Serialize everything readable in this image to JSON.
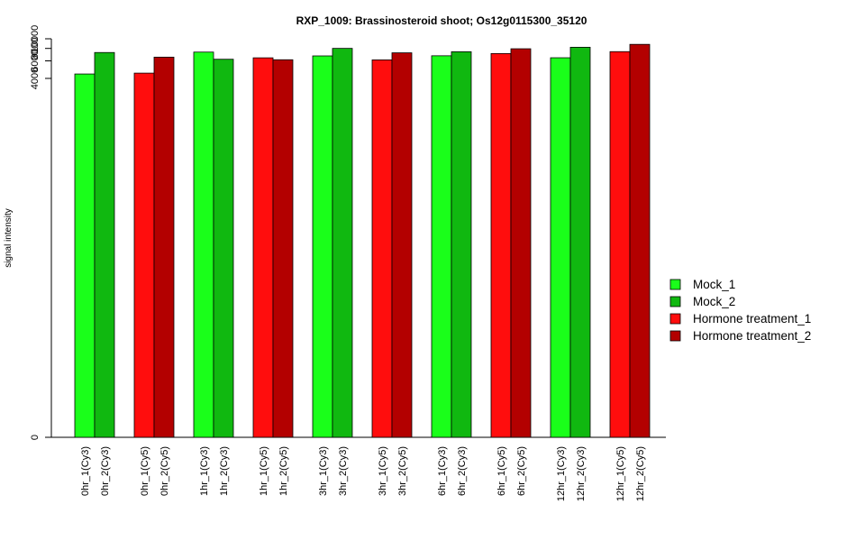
{
  "chart_data": {
    "type": "bar",
    "title": "RXP_1009: Brassinosteroid shoot; Os12g0115300_35120",
    "ylabel": "signal intensity",
    "xlabel": "",
    "ylim": [
      0,
      10000
    ],
    "y_scale": "log",
    "yticks": [
      0,
      4000,
      6000,
      8000,
      10000
    ],
    "ytick_labels": [
      "0",
      "4000",
      "6000",
      "8000",
      "10000"
    ],
    "grid": false,
    "legend_position": "right",
    "legend": [
      {
        "name": "Mock_1",
        "color": "#1aff1a"
      },
      {
        "name": "Mock_2",
        "color": "#10b810"
      },
      {
        "name": "Hormone treatment_1",
        "color": "#ff0d0d"
      },
      {
        "name": "Hormone treatment_2",
        "color": "#b30000"
      }
    ],
    "bars": [
      {
        "label": "0hr_1(Cy3)",
        "value": 4430,
        "series": 0
      },
      {
        "label": "0hr_2(Cy3)",
        "value": 7280,
        "series": 1
      },
      {
        "label": "0hr_1(Cy5)",
        "value": 4520,
        "series": 2
      },
      {
        "label": "0hr_2(Cy5)",
        "value": 6540,
        "series": 3
      },
      {
        "label": "1hr_1(Cy3)",
        "value": 7350,
        "series": 0
      },
      {
        "label": "1hr_2(Cy3)",
        "value": 6230,
        "series": 1
      },
      {
        "label": "1hr_1(Cy5)",
        "value": 6440,
        "series": 2
      },
      {
        "label": "1hr_2(Cy5)",
        "value": 6160,
        "series": 3
      },
      {
        "label": "3hr_1(Cy3)",
        "value": 6730,
        "series": 0
      },
      {
        "label": "3hr_2(Cy3)",
        "value": 8010,
        "series": 1
      },
      {
        "label": "3hr_1(Cy5)",
        "value": 6140,
        "series": 2
      },
      {
        "label": "3hr_2(Cy5)",
        "value": 7230,
        "series": 3
      },
      {
        "label": "6hr_1(Cy3)",
        "value": 6750,
        "series": 0
      },
      {
        "label": "6hr_2(Cy3)",
        "value": 7410,
        "series": 1
      },
      {
        "label": "6hr_1(Cy5)",
        "value": 7110,
        "series": 2
      },
      {
        "label": "6hr_2(Cy5)",
        "value": 7940,
        "series": 3
      },
      {
        "label": "12hr_1(Cy3)",
        "value": 6450,
        "series": 0
      },
      {
        "label": "12hr_2(Cy3)",
        "value": 8220,
        "series": 1
      },
      {
        "label": "12hr_1(Cy5)",
        "value": 7430,
        "series": 2
      },
      {
        "label": "12hr_2(Cy5)",
        "value": 8790,
        "series": 3
      }
    ]
  }
}
